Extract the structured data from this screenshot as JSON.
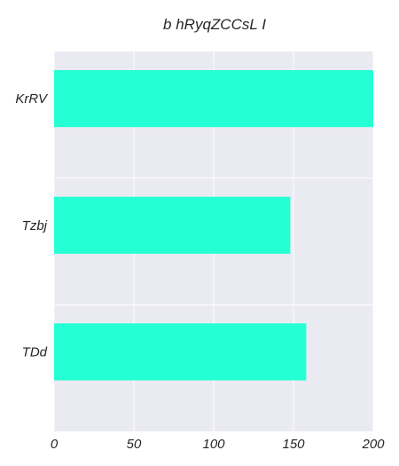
{
  "chart_data": {
    "type": "bar",
    "orientation": "horizontal",
    "title": "b hRyqZCCsL I",
    "xlabel": "",
    "ylabel": "",
    "categories": [
      "KrRV",
      "Tzbj",
      "TDd"
    ],
    "values": [
      200,
      148,
      158
    ],
    "xlim": [
      0,
      200
    ],
    "xticks": [
      0,
      50,
      100,
      150,
      200
    ],
    "grid": true,
    "colors": {
      "bar": "#24ffd4",
      "plot_background": "#eaeaf2",
      "grid": "#ffffff",
      "text": "#262626"
    }
  }
}
